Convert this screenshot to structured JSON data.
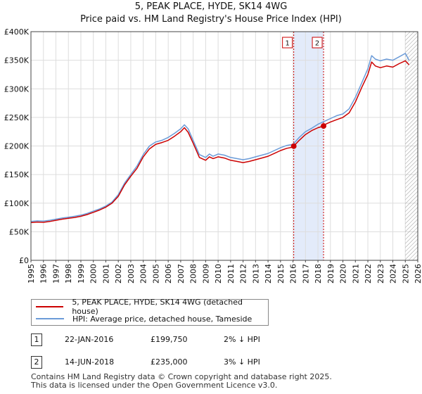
{
  "title_line1": "5, PEAK PLACE, HYDE, SK14 4WG",
  "title_line2": "Price paid vs. HM Land Registry's House Price Index (HPI)",
  "colors": {
    "property": "#cc0000",
    "hpi": "#6b9bd8",
    "band": "#e3ebfa"
  },
  "legend": {
    "property_label": "5, PEAK PLACE, HYDE, SK14 4WG (detached house)",
    "hpi_label": "HPI: Average price, detached house, Tameside"
  },
  "transactions": [
    {
      "num": "1",
      "date": "22-JAN-2016",
      "price": "£199,750",
      "hpi_diff": "2% ↓ HPI"
    },
    {
      "num": "2",
      "date": "14-JUN-2018",
      "price": "£235,000",
      "hpi_diff": "3% ↓ HPI"
    }
  ],
  "footer_line1": "Contains HM Land Registry data © Crown copyright and database right 2025.",
  "footer_line2": "This data is licensed under the Open Government Licence v3.0.",
  "chart_data": {
    "type": "line",
    "title": "5, PEAK PLACE, HYDE, SK14 4WG",
    "subtitle": "Price paid vs. HM Land Registry's House Price Index (HPI)",
    "xlim": [
      1995,
      2026
    ],
    "ylim": [
      0,
      400000
    ],
    "x_ticks": [
      1995,
      1996,
      1997,
      1998,
      1999,
      2000,
      2001,
      2002,
      2003,
      2004,
      2005,
      2006,
      2007,
      2008,
      2009,
      2010,
      2011,
      2012,
      2013,
      2014,
      2015,
      2016,
      2017,
      2018,
      2019,
      2020,
      2021,
      2022,
      2023,
      2024,
      2025,
      2026
    ],
    "y_ticks": [
      0,
      50000,
      100000,
      150000,
      200000,
      250000,
      300000,
      350000,
      400000
    ],
    "y_tick_labels": [
      "£0",
      "£50K",
      "£100K",
      "£150K",
      "£200K",
      "£250K",
      "£300K",
      "£350K",
      "£400K"
    ],
    "grid": true,
    "legend_position": "bottom",
    "shaded_band": [
      2016.06,
      2018.45
    ],
    "future_hatch_from": 2025.0,
    "series": [
      {
        "name": "HPI: Average price, detached house, Tameside",
        "x": [
          1995,
          1995.5,
          1996,
          1996.5,
          1997,
          1997.5,
          1998,
          1998.5,
          1999,
          1999.5,
          2000,
          2000.5,
          2001,
          2001.5,
          2002,
          2002.5,
          2003,
          2003.5,
          2004,
          2004.5,
          2005,
          2005.5,
          2006,
          2006.5,
          2007,
          2007.3,
          2007.6,
          2008,
          2008.5,
          2009,
          2009.3,
          2009.6,
          2010,
          2010.5,
          2011,
          2011.5,
          2012,
          2012.5,
          2013,
          2013.5,
          2014,
          2014.5,
          2015,
          2015.5,
          2016,
          2016.5,
          2017,
          2017.5,
          2018,
          2018.5,
          2019,
          2019.5,
          2020,
          2020.5,
          2021,
          2021.5,
          2022,
          2022.3,
          2022.6,
          2023,
          2023.5,
          2024,
          2024.5,
          2025,
          2025.3
        ],
        "values": [
          68000,
          69000,
          68500,
          70000,
          72000,
          74000,
          75500,
          77000,
          79000,
          82000,
          86000,
          90000,
          95000,
          102000,
          115000,
          135000,
          150000,
          165000,
          185000,
          200000,
          207000,
          210000,
          215000,
          222000,
          230000,
          237000,
          230000,
          210000,
          185000,
          180000,
          186000,
          182000,
          186000,
          184000,
          180000,
          178000,
          176000,
          178000,
          181000,
          184000,
          187000,
          192000,
          197000,
          201000,
          203000,
          215000,
          225000,
          231000,
          238000,
          243000,
          248000,
          253000,
          256000,
          265000,
          285000,
          310000,
          335000,
          358000,
          352000,
          349000,
          352000,
          350000,
          356000,
          362000,
          350000
        ]
      },
      {
        "name": "5, PEAK PLACE, HYDE, SK14 4WG (detached house)",
        "x": [
          1995,
          1995.5,
          1996,
          1996.5,
          1997,
          1997.5,
          1998,
          1998.5,
          1999,
          1999.5,
          2000,
          2000.5,
          2001,
          2001.5,
          2002,
          2002.5,
          2003,
          2003.5,
          2004,
          2004.5,
          2005,
          2005.5,
          2006,
          2006.5,
          2007,
          2007.3,
          2007.6,
          2008,
          2008.5,
          2009,
          2009.3,
          2009.6,
          2010,
          2010.5,
          2011,
          2011.5,
          2012,
          2012.5,
          2013,
          2013.5,
          2014,
          2014.5,
          2015,
          2015.5,
          2016,
          2016.06,
          2016.5,
          2017,
          2017.5,
          2018,
          2018.45,
          2018.5,
          2019,
          2019.5,
          2020,
          2020.5,
          2021,
          2021.5,
          2022,
          2022.3,
          2022.6,
          2023,
          2023.5,
          2024,
          2024.5,
          2025,
          2025.3
        ],
        "values": [
          66000,
          67000,
          66500,
          68000,
          70000,
          72000,
          73500,
          75000,
          77000,
          80000,
          84000,
          88000,
          93000,
          100000,
          112000,
          132000,
          147000,
          161000,
          181000,
          195000,
          203000,
          206000,
          210000,
          217000,
          225000,
          232000,
          224000,
          205000,
          180000,
          175000,
          181000,
          178000,
          181000,
          179000,
          175000,
          173000,
          171000,
          173000,
          176000,
          179000,
          182000,
          187000,
          192000,
          196000,
          198000,
          199750,
          210000,
          220000,
          227000,
          232000,
          235000,
          237000,
          242000,
          246000,
          250000,
          258000,
          277000,
          302000,
          325000,
          347000,
          340000,
          337000,
          340000,
          338000,
          344000,
          349000,
          342000
        ]
      }
    ],
    "markers": [
      {
        "label": "1",
        "x": 2016.06,
        "y": 199750
      },
      {
        "label": "2",
        "x": 2018.45,
        "y": 235000
      }
    ]
  }
}
